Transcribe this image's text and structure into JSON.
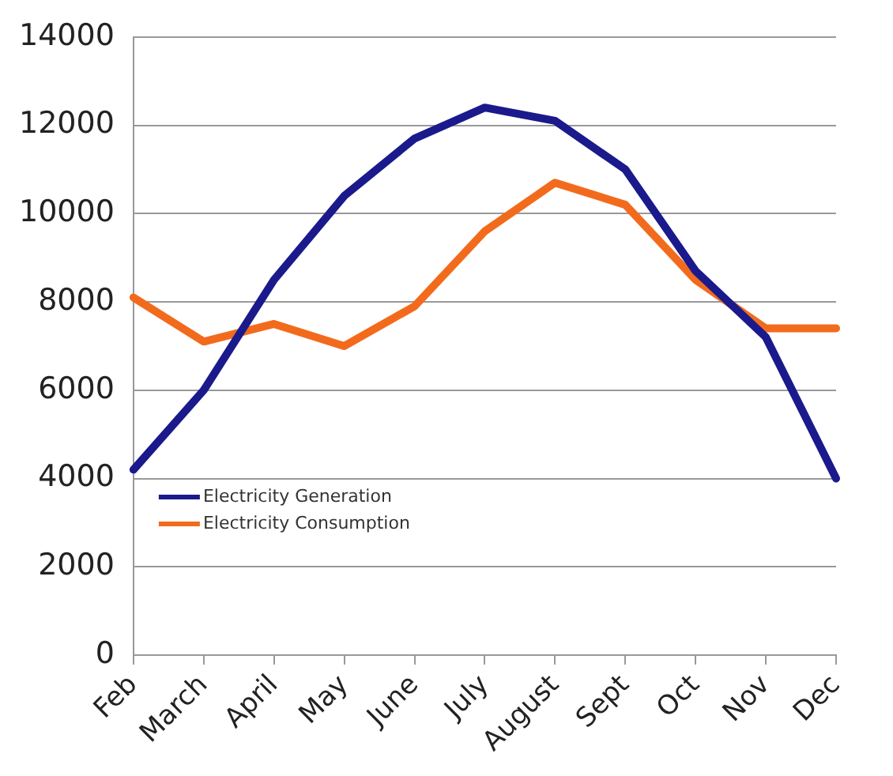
{
  "chart_data": {
    "type": "line",
    "categories": [
      "Feb",
      "March",
      "April",
      "May",
      "June",
      "July",
      "August",
      "Sept",
      "Oct",
      "Nov",
      "Dec"
    ],
    "series": [
      {
        "name": "Electricity Generation",
        "color": "#1a1a8c",
        "values": [
          4200,
          6000,
          8500,
          10400,
          11700,
          12400,
          12100,
          11000,
          8700,
          7200,
          4000
        ]
      },
      {
        "name": "Electricity Consumption",
        "color": "#f26b1d",
        "values": [
          8100,
          7100,
          7500,
          7000,
          7900,
          9600,
          10700,
          10200,
          8500,
          7400,
          7400
        ]
      }
    ],
    "ylim": [
      0,
      14000
    ],
    "yticks": [
      0,
      2000,
      4000,
      6000,
      8000,
      10000,
      12000,
      14000
    ],
    "grid": "y",
    "legend": "bottom left",
    "marker": "none",
    "line_style": "solid"
  }
}
